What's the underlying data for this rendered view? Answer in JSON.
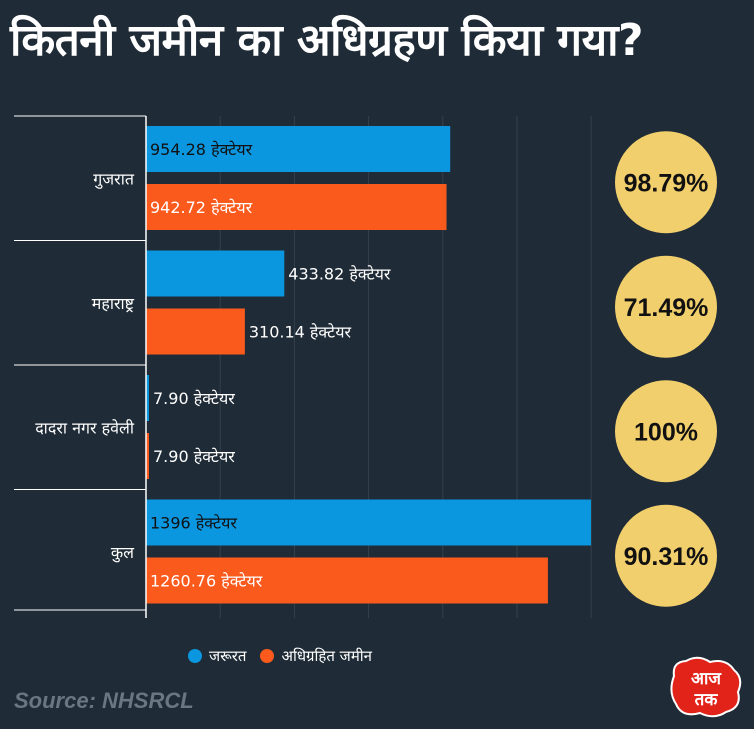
{
  "title": "कितनी जमीन का अधिग्रहण किया गया?",
  "source": "Source: NHSRCL",
  "logo_text": "आज तक",
  "colors": {
    "background": "#1f2b36",
    "required": "#0b96e0",
    "acquired": "#fb5a1d",
    "badge": "#f2cf6d",
    "grid": "#34404b",
    "axis": "#ffffff"
  },
  "chart_data": {
    "type": "bar",
    "orientation": "horizontal",
    "unit_label": "हेक्टेयर",
    "categories": [
      "गुजरात",
      "महाराष्ट्र",
      "दादरा नगर हवेली",
      "कुल"
    ],
    "series": [
      {
        "name": "जरूरत",
        "values": [
          954.28,
          433.82,
          7.9,
          1396
        ],
        "labels": [
          "954.28",
          "433.82",
          "7.90",
          "1396"
        ]
      },
      {
        "name": "अधिग्रहित जमीन",
        "values": [
          942.72,
          310.14,
          7.9,
          1260.76
        ],
        "labels": [
          "942.72",
          "310.14",
          "7.90",
          "1260.76"
        ]
      }
    ],
    "percentages": [
      "98.79%",
      "71.49%",
      "100%",
      "90.31%"
    ],
    "xlim": [
      0,
      1396
    ],
    "grid": true,
    "legend_position": "bottom"
  }
}
